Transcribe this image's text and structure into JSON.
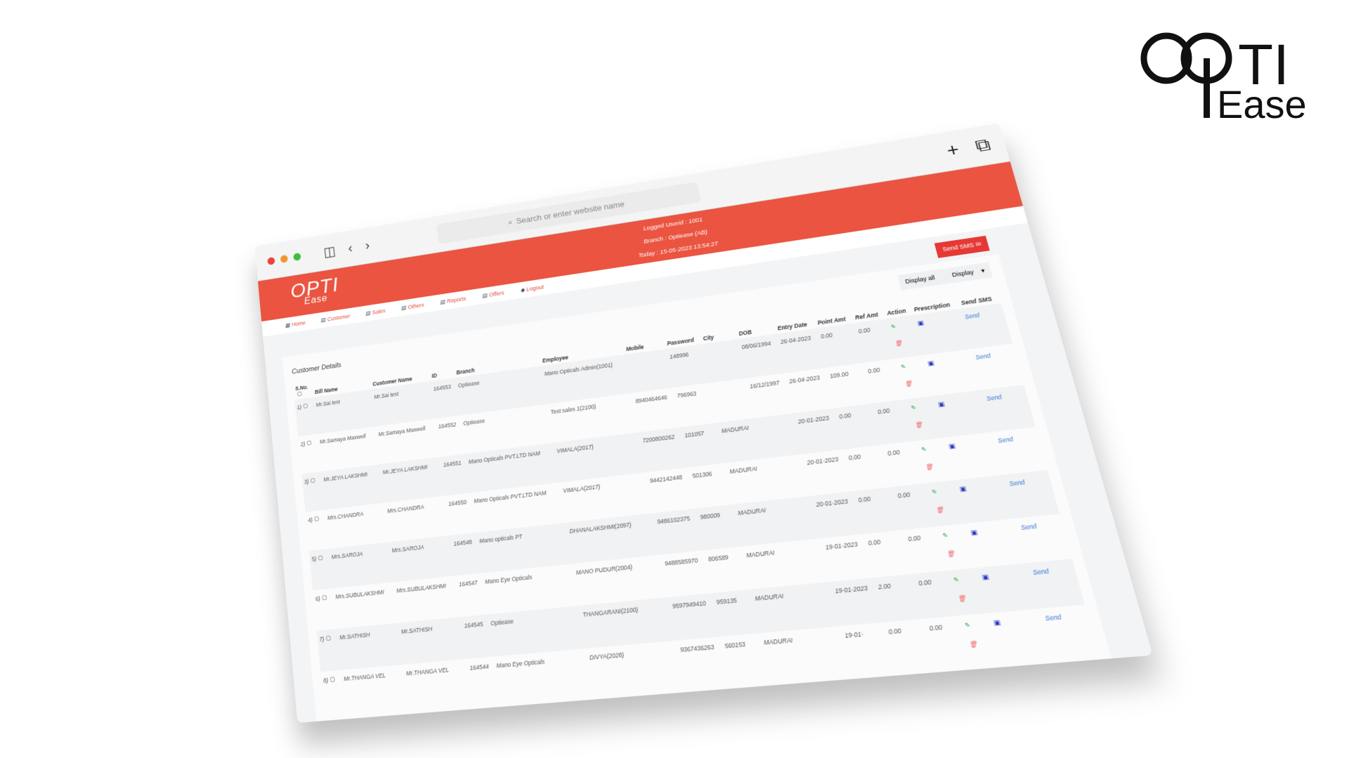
{
  "brand": {
    "logo_top": "OPTI",
    "logo_bottom": "Ease"
  },
  "browser": {
    "url_placeholder": "Search or enter website name",
    "colors": {
      "close": "#e8453c",
      "min": "#f0962e",
      "max": "#3bbf3f"
    }
  },
  "header": {
    "logged": "Logged Userid : 1001",
    "branch": "Branch : Optiease (AB)",
    "today": "Today : 15-05-2023  13:54:27",
    "color": "#ea5440"
  },
  "nav": [
    {
      "label": "Home",
      "icon": "grid-icon"
    },
    {
      "label": "Customer",
      "icon": "doc-icon"
    },
    {
      "label": "Sales",
      "icon": "doc-icon"
    },
    {
      "label": "Others",
      "icon": "doc-icon"
    },
    {
      "label": "Reports",
      "icon": "doc-icon"
    },
    {
      "label": "Offers",
      "icon": "doc-icon"
    },
    {
      "label": "Logout",
      "icon": "logout-icon"
    }
  ],
  "toolbar": {
    "send_sms": "Send SMS",
    "display_all": "Display all",
    "display": "Display"
  },
  "section_title": "Customer Details",
  "columns": [
    "S.No.",
    "Bill Name",
    "Customer Name",
    "ID",
    "Branch",
    "Employee",
    "Mobile",
    "Password",
    "City",
    "DOB",
    "Entry Date",
    "Point Amt",
    "Ref Amt",
    "Action",
    "Prescription",
    "Send SMS"
  ],
  "rows": [
    {
      "sno": "1)",
      "bill": "Mr.Sai test",
      "cust": "Mr.Sai test",
      "id": "164553",
      "branch": "Optiease",
      "emp": "Mano Opticals Admin(1001)",
      "mobile": "",
      "pwd": "148996",
      "city": "",
      "dob": "08/06/1994",
      "entry": "26-04-2023",
      "point": "0.00",
      "ref": "0.00",
      "send": "Send"
    },
    {
      "sno": "2)",
      "bill": "Mr.Samaya Maxwell",
      "cust": "Mr.Samaya Maxwell",
      "id": "164552",
      "branch": "Optiease",
      "emp": "Test sales 1(2100)",
      "mobile": "8940464646",
      "pwd": "796963",
      "city": "",
      "dob": "16/12/1997",
      "entry": "26-04-2023",
      "point": "109.00",
      "ref": "0.00",
      "send": "Send"
    },
    {
      "sno": "3)",
      "bill": "Mr.JEYA LAKSHMI",
      "cust": "Mr.JEYA LAKSHMI",
      "id": "164551",
      "branch": "Mano Opticals PVT.LTD NAM",
      "emp": "VIMALA(2017)",
      "mobile": "7200800262",
      "pwd": "101057",
      "city": "MADURAI",
      "dob": "",
      "entry": "20-01-2023",
      "point": "0.00",
      "ref": "0.00",
      "send": "Send"
    },
    {
      "sno": "4)",
      "bill": "Mrs.CHANDRA",
      "cust": "Mrs.CHANDRA",
      "id": "164550",
      "branch": "Mano Opticals PVT.LTD NAM",
      "emp": "VIMALA(2017)",
      "mobile": "9442142448",
      "pwd": "501306",
      "city": "MADURAI",
      "dob": "",
      "entry": "20-01-2023",
      "point": "0.00",
      "ref": "0.00",
      "send": "Send"
    },
    {
      "sno": "5)",
      "bill": "Mrs.SAROJA",
      "cust": "Mrs.SAROJA",
      "id": "164548",
      "branch": "Mano opticals PT",
      "emp": "DHANALAKSHMI(2097)",
      "mobile": "9486102375",
      "pwd": "980009",
      "city": "MADURAI",
      "dob": "",
      "entry": "20-01-2023",
      "point": "0.00",
      "ref": "0.00",
      "send": "Send"
    },
    {
      "sno": "6)",
      "bill": "Mrs.SUBULAKSHMI",
      "cust": "Mrs.SUBULAKSHMI",
      "id": "164547",
      "branch": "Mano Eye Opticals",
      "emp": "MANO PUDUR(2004)",
      "mobile": "9488585970",
      "pwd": "806589",
      "city": "MADURAI",
      "dob": "",
      "entry": "19-01-2023",
      "point": "0.00",
      "ref": "0.00",
      "send": "Send"
    },
    {
      "sno": "7)",
      "bill": "Mr.SATHISH",
      "cust": "Mr.SATHISH",
      "id": "164545",
      "branch": "Optiease",
      "emp": "THANGARANI(2100)",
      "mobile": "9597949410",
      "pwd": "959135",
      "city": "MADURAI",
      "dob": "",
      "entry": "19-01-2023",
      "point": "2.00",
      "ref": "0.00",
      "send": "Send"
    },
    {
      "sno": "8)",
      "bill": "Mr.THANGA VEL",
      "cust": "Mr.THANGA VEL",
      "id": "164544",
      "branch": "Mano Eye Opticals",
      "emp": "DIVYA(2028)",
      "mobile": "9367436263",
      "pwd": "560153",
      "city": "MADURAI",
      "dob": "",
      "entry": "19-01-",
      "point": "0.00",
      "ref": "0.00",
      "send": "Send"
    }
  ]
}
